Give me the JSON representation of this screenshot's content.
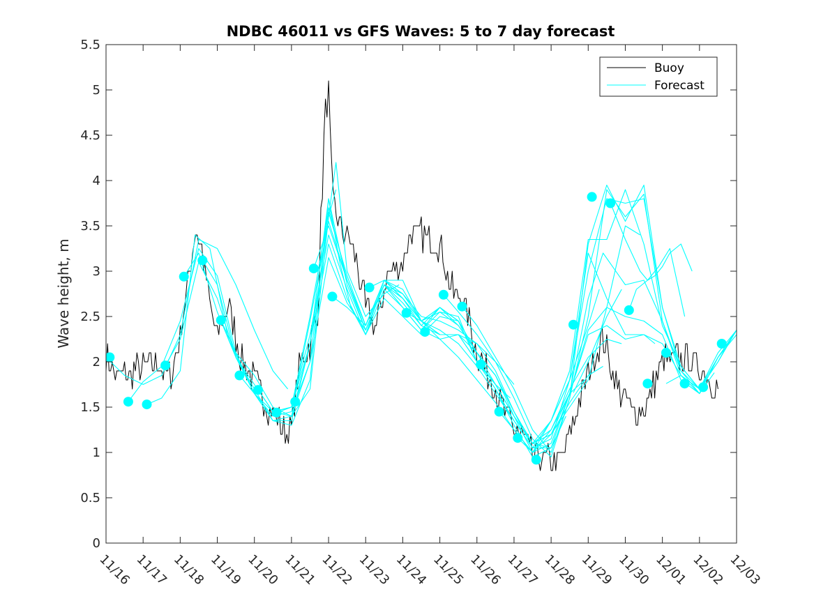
{
  "chart_data": {
    "type": "line",
    "title": "NDBC 46011 vs GFS Waves: 5 to 7 day forecast",
    "xlabel": "",
    "ylabel": "Wave height, m",
    "x_unit": "days since 11/16",
    "xlim": [
      0,
      17
    ],
    "ylim": [
      0,
      5.5
    ],
    "y_ticks": [
      0,
      0.5,
      1,
      1.5,
      2,
      2.5,
      3,
      3.5,
      4,
      4.5,
      5,
      5.5
    ],
    "x_tick_positions": [
      0,
      1,
      2,
      3,
      4,
      5,
      6,
      7,
      8,
      9,
      10,
      11,
      12,
      13,
      14,
      15,
      16,
      17
    ],
    "x_tick_labels": [
      "11/16",
      "11/17",
      "11/18",
      "11/19",
      "11/20",
      "11/21",
      "11/22",
      "11/23",
      "11/24",
      "11/25",
      "11/26",
      "11/27",
      "11/28",
      "11/29",
      "11/30",
      "12/01",
      "12/02",
      "12/03"
    ],
    "grid": false,
    "legend": {
      "position": "top-right",
      "entries": [
        "Buoy",
        "Forecast"
      ]
    },
    "colors": {
      "buoy": "#000000",
      "forecast": "#00FFFF",
      "axes": "#262626"
    },
    "buoy_x_range": [
      0,
      16.5
    ],
    "buoy_keypoints": {
      "x": [
        0,
        0.3,
        0.6,
        1.0,
        1.4,
        1.6,
        1.8,
        2.0,
        2.2,
        2.4,
        2.6,
        2.8,
        3.0,
        3.3,
        3.6,
        4.0,
        4.4,
        4.8,
        5.0,
        5.2,
        5.5,
        5.7,
        5.9,
        6.0,
        6.1,
        6.3,
        6.6,
        6.8,
        7.0,
        7.3,
        7.6,
        8.0,
        8.2,
        8.5,
        9.0,
        9.3,
        9.6,
        10.0,
        10.4,
        10.8,
        11.2,
        11.5,
        11.8,
        12.0,
        12.2,
        12.5,
        12.8,
        13.0,
        13.2,
        13.4,
        13.6,
        13.8,
        14.2,
        14.6,
        15.0,
        15.5,
        16.0,
        16.5
      ],
      "y": [
        2.05,
        1.85,
        1.85,
        1.95,
        2.0,
        1.85,
        1.9,
        2.3,
        2.8,
        3.45,
        3.2,
        2.6,
        2.3,
        2.65,
        2.1,
        1.8,
        1.5,
        1.25,
        1.25,
        1.9,
        2.2,
        2.5,
        4.7,
        5.0,
        3.8,
        3.5,
        3.3,
        3.0,
        2.6,
        2.4,
        3.0,
        3.1,
        3.4,
        3.4,
        3.3,
        2.8,
        2.7,
        2.1,
        1.8,
        1.4,
        1.2,
        0.95,
        0.9,
        0.9,
        0.85,
        1.2,
        1.6,
        1.85,
        2.1,
        2.25,
        2.0,
        1.7,
        1.45,
        1.55,
        2.0,
        2.05,
        1.95,
        1.7
      ]
    },
    "forecast_series": [
      {
        "name": "Forecast 1",
        "x": [
          0,
          0.5,
          1.0,
          1.5,
          2.0,
          2.5,
          3.0,
          3.5,
          4.0,
          4.5,
          4.9
        ],
        "y": [
          2.05,
          1.85,
          1.75,
          1.85,
          2.3,
          3.35,
          3.25,
          2.85,
          2.35,
          1.9,
          1.7
        ]
      },
      {
        "name": "Forecast 2",
        "x": [
          0.6,
          1.0,
          1.5,
          2.0,
          2.5,
          3.0,
          3.5,
          4.0,
          4.5,
          5.0,
          5.5,
          6.0,
          6.2
        ],
        "y": [
          1.56,
          1.78,
          1.95,
          2.45,
          3.25,
          2.95,
          2.1,
          1.85,
          1.5,
          1.4,
          1.7,
          3.6,
          3.9
        ]
      },
      {
        "name": "Forecast 3",
        "x": [
          1.1,
          1.5,
          2.0,
          2.4,
          2.8,
          3.3,
          4.0,
          4.5,
          5.0,
          5.5,
          5.8,
          6.2,
          6.5,
          7.0,
          7.5,
          7.9
        ],
        "y": [
          1.53,
          1.6,
          1.9,
          3.4,
          3.25,
          2.25,
          1.65,
          1.35,
          1.35,
          2.2,
          3.0,
          4.2,
          3.0,
          2.5,
          2.75,
          2.85
        ]
      },
      {
        "name": "Forecast 4",
        "x": [
          1.6,
          2.0,
          2.5,
          3.0,
          3.5,
          4.0,
          4.5,
          5.0,
          5.5,
          6.0,
          6.5,
          7.0,
          7.5,
          8.0,
          8.5,
          9.0,
          9.5,
          10.0
        ],
        "y": [
          1.96,
          2.25,
          3.1,
          2.7,
          2.05,
          1.7,
          1.35,
          1.3,
          1.8,
          3.8,
          2.85,
          2.35,
          2.85,
          2.75,
          2.45,
          2.25,
          2.3,
          2.1
        ]
      },
      {
        "name": "Forecast 5",
        "x": [
          2.1,
          2.5,
          3.0,
          3.5,
          4.0,
          4.5,
          5.0,
          5.5,
          6.0,
          6.3,
          6.6,
          7.0,
          7.5,
          8.0,
          8.5,
          9.0,
          9.5,
          10.0,
          10.5,
          11.0
        ],
        "y": [
          2.94,
          3.2,
          2.55,
          2.05,
          1.75,
          1.45,
          1.4,
          2.2,
          3.8,
          3.1,
          2.6,
          2.3,
          2.9,
          2.9,
          2.45,
          2.3,
          2.3,
          2.2,
          2.0,
          1.75
        ]
      },
      {
        "name": "Forecast 6",
        "x": [
          2.6,
          3.0,
          3.5,
          4.0,
          4.5,
          5.0,
          5.5,
          6.0,
          6.5,
          7.0,
          7.5,
          8.0,
          8.5,
          9.0,
          9.5,
          10.0,
          10.5,
          10.9
        ],
        "y": [
          3.12,
          2.85,
          2.05,
          1.65,
          1.35,
          1.4,
          2.0,
          3.7,
          2.9,
          2.4,
          2.9,
          2.8,
          2.45,
          2.3,
          2.3,
          2.0,
          1.75,
          1.6
        ]
      },
      {
        "name": "Forecast 7",
        "x": [
          3.1,
          3.5,
          4.0,
          4.5,
          5.0,
          5.5,
          6.0,
          6.5,
          7.0,
          7.5,
          8.0,
          8.5,
          9.0,
          9.5,
          10.0,
          10.5,
          11.0,
          11.5,
          11.9
        ],
        "y": [
          2.46,
          2.1,
          1.65,
          1.45,
          1.5,
          2.5,
          3.65,
          2.95,
          2.4,
          2.9,
          2.7,
          2.45,
          2.55,
          2.5,
          2.0,
          1.7,
          1.35,
          1.05,
          1.05
        ]
      },
      {
        "name": "Forecast 8",
        "x": [
          3.6,
          4.0,
          4.5,
          5.0,
          5.5,
          6.0,
          6.5,
          7.0,
          7.5,
          8.0,
          8.5,
          9.0,
          9.5,
          10.0,
          10.5,
          11.0,
          11.5,
          12.0,
          12.4
        ],
        "y": [
          1.85,
          1.65,
          1.4,
          1.45,
          2.45,
          3.55,
          2.9,
          2.35,
          2.85,
          2.65,
          2.4,
          2.6,
          2.45,
          2.0,
          1.7,
          1.3,
          0.95,
          1.05,
          1.4
        ]
      },
      {
        "name": "Forecast 9",
        "x": [
          4.1,
          4.5,
          5.0,
          5.5,
          6.0,
          6.5,
          7.0,
          7.5,
          8.0,
          8.5,
          9.0,
          9.5,
          10.0,
          10.5,
          11.0,
          11.5,
          12.0,
          12.5,
          12.9
        ],
        "y": [
          1.69,
          1.45,
          1.5,
          2.3,
          3.4,
          2.8,
          2.3,
          2.8,
          2.6,
          2.35,
          2.55,
          2.4,
          2.1,
          1.75,
          1.4,
          1.0,
          1.25,
          1.65,
          1.8
        ]
      },
      {
        "name": "Forecast 10",
        "x": [
          4.6,
          5.0,
          5.5,
          6.0,
          6.5,
          7.0,
          7.5,
          8.0,
          8.5,
          9.0,
          9.5,
          10.0,
          10.5,
          11.0,
          11.5,
          12.0,
          12.5,
          13.0,
          13.4
        ],
        "y": [
          1.44,
          1.5,
          2.2,
          3.3,
          2.7,
          2.3,
          2.7,
          2.5,
          2.3,
          2.5,
          2.45,
          2.1,
          1.85,
          1.45,
          1.1,
          1.2,
          1.55,
          1.85,
          1.95
        ]
      },
      {
        "name": "Forecast 11",
        "x": [
          5.1,
          5.5,
          6.0,
          6.5,
          7.0,
          7.5,
          8.0,
          8.5,
          9.0,
          9.5,
          10.0,
          10.5,
          11.0,
          11.5,
          12.0,
          12.5,
          13.0,
          13.5,
          13.9
        ],
        "y": [
          1.56,
          2.0,
          3.15,
          2.65,
          2.35,
          2.85,
          2.6,
          2.35,
          2.6,
          2.4,
          2.1,
          1.85,
          1.4,
          1.1,
          1.25,
          1.7,
          2.05,
          2.25,
          2.2
        ]
      },
      {
        "name": "Forecast 12",
        "x": [
          5.6,
          6.0,
          6.5,
          7.0,
          7.5,
          8.0,
          8.5,
          9.0,
          9.5,
          10.0,
          10.5,
          11.0,
          11.5,
          12.0,
          12.5,
          13.0,
          13.5,
          14.0,
          14.4
        ],
        "y": [
          3.03,
          3.5,
          2.9,
          2.4,
          2.9,
          2.7,
          2.45,
          2.6,
          2.45,
          2.1,
          1.85,
          1.45,
          1.1,
          1.2,
          1.5,
          1.8,
          2.6,
          3.5,
          3.4
        ]
      },
      {
        "name": "Forecast 13",
        "x": [
          6.1,
          6.5,
          7.0,
          7.5,
          8.0,
          8.5,
          9.0,
          9.5,
          10.0,
          10.5,
          11.0,
          11.5,
          12.0,
          12.5,
          13.0,
          13.3
        ],
        "y": [
          2.72,
          2.6,
          2.4,
          2.85,
          2.7,
          2.4,
          2.3,
          2.3,
          2.0,
          1.75,
          1.4,
          1.1,
          1.35,
          1.8,
          2.4,
          2.8
        ]
      },
      {
        "name": "Forecast 14",
        "x": [
          7.1,
          7.5,
          8.0,
          8.5,
          9.0,
          9.5,
          10.0,
          10.5,
          11.0,
          11.5,
          12.0,
          12.5,
          13.0,
          13.5,
          14.0,
          14.5,
          14.8
        ],
        "y": [
          2.82,
          2.9,
          2.75,
          2.5,
          2.45,
          2.35,
          2.2,
          1.9,
          1.45,
          1.05,
          1.15,
          1.8,
          3.2,
          2.7,
          2.3,
          2.3,
          2.2
        ]
      },
      {
        "name": "Forecast 15",
        "x": [
          8.1,
          8.5,
          9.0,
          9.5,
          10.0,
          10.5,
          11.0,
          11.5,
          12.0,
          12.5,
          13.0,
          13.5,
          14.0,
          14.5,
          15.0,
          15.5,
          16.0,
          16.5,
          17.0
        ],
        "y": [
          2.54,
          2.45,
          2.35,
          2.2,
          1.95,
          1.65,
          1.35,
          1.05,
          1.35,
          1.9,
          3.35,
          3.35,
          3.9,
          3.3,
          2.4,
          1.95,
          1.7,
          2.1,
          2.35
        ]
      },
      {
        "name": "Forecast 16",
        "x": [
          8.6,
          9.0,
          9.5,
          10.0,
          10.5,
          11.0,
          11.5,
          12.0,
          12.5,
          13.0,
          13.5,
          14.0,
          14.5,
          15.0,
          15.5,
          16.0,
          16.5,
          16.9
        ],
        "y": [
          2.33,
          2.25,
          2.05,
          1.8,
          1.55,
          1.25,
          1.0,
          1.35,
          1.8,
          3.0,
          3.8,
          3.75,
          3.8,
          2.6,
          1.9,
          1.7,
          2.0,
          2.3
        ]
      },
      {
        "name": "Forecast 17",
        "x": [
          9.1,
          9.5,
          10.0,
          10.5,
          11.0,
          11.5,
          12.0,
          12.5,
          13.0,
          13.5,
          14.0,
          14.5,
          15.0,
          15.5,
          16.0,
          16.5,
          17.0
        ],
        "y": [
          2.74,
          2.55,
          2.3,
          2.0,
          1.6,
          1.15,
          0.95,
          1.6,
          2.5,
          3.9,
          3.6,
          3.85,
          2.45,
          1.9,
          1.65,
          2.05,
          2.35
        ]
      },
      {
        "name": "Forecast 18",
        "x": [
          9.6,
          10.0,
          10.5,
          11.0,
          11.5,
          12.0,
          12.5,
          13.0,
          13.5,
          14.0,
          14.5,
          15.0,
          15.5,
          16.0,
          16.5,
          17.0
        ],
        "y": [
          2.61,
          2.4,
          2.05,
          1.7,
          1.25,
          1.0,
          1.6,
          3.3,
          3.95,
          3.55,
          3.95,
          2.6,
          1.95,
          1.7,
          2.05,
          2.35
        ]
      },
      {
        "name": "Forecast 19",
        "x": [
          10.1,
          10.5,
          11.0,
          11.5,
          12.0,
          12.5,
          13.0,
          13.4,
          14.0,
          14.5,
          15.0,
          15.5,
          16.0,
          16.5,
          17.0
        ],
        "y": [
          1.97,
          1.75,
          1.4,
          1.1,
          1.05,
          1.65,
          2.7,
          3.2,
          2.85,
          2.9,
          2.45,
          1.85,
          1.65,
          2.05,
          2.3
        ]
      },
      {
        "name": "Forecast 20",
        "x": [
          10.6,
          11.0,
          11.5,
          12.0,
          12.5,
          13.0,
          13.5,
          14.0,
          14.5,
          15.0,
          15.5,
          16.0,
          16.4
        ],
        "y": [
          1.45,
          1.25,
          1.0,
          1.1,
          1.65,
          2.35,
          2.6,
          2.5,
          2.45,
          2.3,
          1.8,
          1.65,
          1.88
        ]
      },
      {
        "name": "Forecast 21",
        "x": [
          11.1,
          11.5,
          12.0,
          12.5,
          13.0,
          13.5,
          14.0,
          14.5,
          15.0,
          15.5,
          16.0
        ],
        "y": [
          1.16,
          1.0,
          1.2,
          1.65,
          2.3,
          2.4,
          2.25,
          2.3,
          2.2,
          1.85,
          1.65
        ]
      },
      {
        "name": "Forecast 22",
        "x": [
          12.6,
          13.0,
          13.5,
          13.9
        ],
        "y": [
          1.66,
          2.0,
          2.5,
          2.8
        ]
      },
      {
        "name": "Forecast 23",
        "x": [
          13.6,
          14.0,
          14.4,
          14.6,
          14.8,
          15.0,
          15.2,
          15.5,
          15.8
        ],
        "y": [
          3.75,
          3.35,
          3.0,
          2.9,
          2.95,
          3.05,
          3.2,
          3.3,
          3.0
        ]
      },
      {
        "name": "Forecast 24",
        "x": [
          14.1,
          14.3,
          14.6,
          14.9,
          15.2,
          15.6
        ],
        "y": [
          2.57,
          2.8,
          2.9,
          3.05,
          3.25,
          2.5
        ]
      },
      {
        "name": "Forecast 25",
        "x": [
          15.1,
          15.5,
          16.0,
          16.5,
          17.0
        ],
        "y": [
          1.76,
          1.85,
          1.7,
          2.0,
          2.35
        ]
      }
    ],
    "forecast_markers": {
      "x": [
        0.1,
        0.6,
        1.1,
        1.6,
        2.1,
        2.6,
        3.1,
        3.6,
        4.1,
        4.6,
        5.1,
        5.6,
        6.1,
        7.1,
        8.1,
        8.6,
        9.1,
        9.6,
        10.1,
        10.6,
        11.1,
        11.6,
        12.6,
        13.1,
        13.6,
        14.1,
        14.6,
        15.1,
        15.6,
        16.1,
        16.6
      ],
      "y": [
        2.05,
        1.56,
        1.53,
        1.96,
        2.94,
        3.12,
        2.46,
        1.85,
        1.69,
        1.44,
        1.56,
        3.03,
        2.72,
        2.82,
        2.54,
        2.33,
        2.74,
        2.61,
        1.97,
        1.45,
        1.16,
        0.92,
        2.41,
        3.82,
        3.75,
        2.57,
        1.76,
        2.1,
        1.76,
        1.72,
        2.2
      ]
    }
  }
}
